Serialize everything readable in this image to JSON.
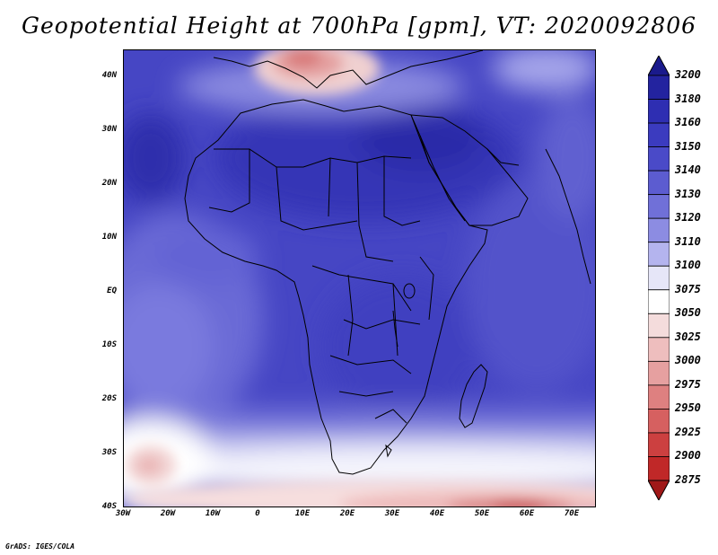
{
  "title": "Geopotential Height at 700hPa [gpm], VT: 2020092806",
  "credit": "GrADS: IGES/COLA",
  "map": {
    "lat_labels": [
      "40N",
      "30N",
      "20N",
      "10N",
      "EQ",
      "10S",
      "20S",
      "30S",
      "40S"
    ],
    "lon_labels": [
      "30W",
      "20W",
      "10W",
      "0",
      "10E",
      "20E",
      "30E",
      "40E",
      "50E",
      "60E",
      "70E"
    ],
    "lat_range": [
      -40,
      45
    ],
    "lon_range": [
      -30,
      75
    ]
  },
  "colorbar": {
    "levels": [
      "3200",
      "3180",
      "3160",
      "3150",
      "3140",
      "3130",
      "3120",
      "3110",
      "3100",
      "3075",
      "3050",
      "3025",
      "3000",
      "2975",
      "2950",
      "2925",
      "2900",
      "2875"
    ],
    "colors": [
      "#1a1a8c",
      "#23239f",
      "#2e2eb2",
      "#3b3bbf",
      "#4a4ac8",
      "#5c5cd0",
      "#7070d8",
      "#8c8ce2",
      "#b4b4ee",
      "#e6e6f8",
      "#ffffff",
      "#f4dcdc",
      "#eebebe",
      "#e6a0a0",
      "#de8080",
      "#d66060",
      "#cc4040",
      "#c02828",
      "#a01818"
    ]
  }
}
